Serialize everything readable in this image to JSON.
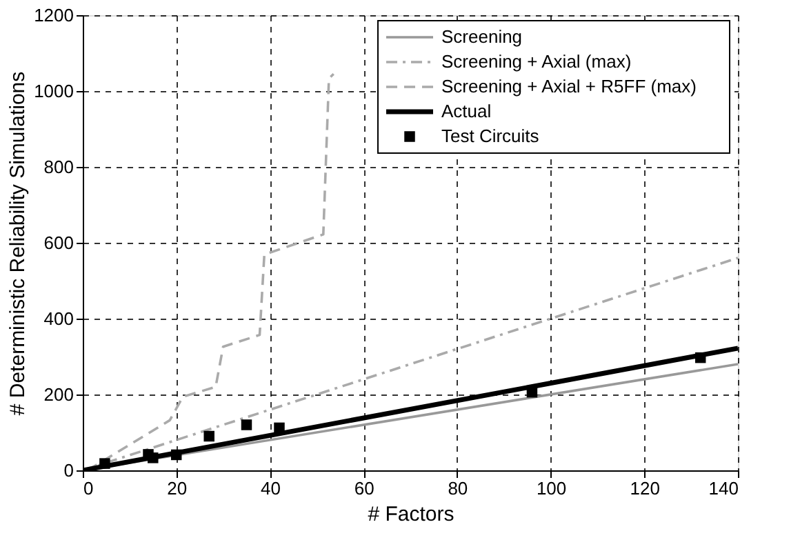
{
  "chart_data": {
    "type": "line",
    "xlabel": "# Factors",
    "ylabel": "# Deterministic Reliability Simulations",
    "xlim": [
      0,
      140
    ],
    "ylim": [
      0,
      1200
    ],
    "xticks": [
      0,
      20,
      40,
      60,
      80,
      100,
      120,
      140
    ],
    "yticks": [
      0,
      200,
      400,
      600,
      800,
      1000,
      1200
    ],
    "grid": true,
    "legend": "top right",
    "series": [
      {
        "name": "Screening",
        "color": "#999999",
        "line_style": "solid",
        "x": [
          0,
          140
        ],
        "values": [
          0,
          280
        ]
      },
      {
        "name": "Screening + Axial (max)",
        "color": "#aaaaaa",
        "line_style": "dashdot",
        "x": [
          0,
          140
        ],
        "values": [
          0,
          560
        ]
      },
      {
        "name": "Screening + Axial + R5FF (max)",
        "color": "#aaaaaa",
        "line_style": "dashed",
        "x": [
          1,
          18.6,
          21.4,
          28.4,
          30,
          37.8,
          38.8,
          51.4,
          52.6,
          53.6
        ],
        "values": [
          0,
          132,
          194,
          220,
          326,
          357,
          569,
          622,
          1033,
          1045
        ]
      },
      {
        "name": "Actual",
        "color": "#000000",
        "line_style": "solid",
        "x": [
          0,
          140
        ],
        "values": [
          0,
          322
        ]
      },
      {
        "name": "Test Circuits",
        "type": "scatter",
        "marker": "square",
        "color": "#000000",
        "x": [
          4.7,
          14,
          15,
          20,
          27,
          35,
          42,
          96,
          132
        ],
        "values": [
          18,
          42,
          33,
          41,
          90,
          120,
          112,
          206,
          297
        ]
      }
    ]
  }
}
